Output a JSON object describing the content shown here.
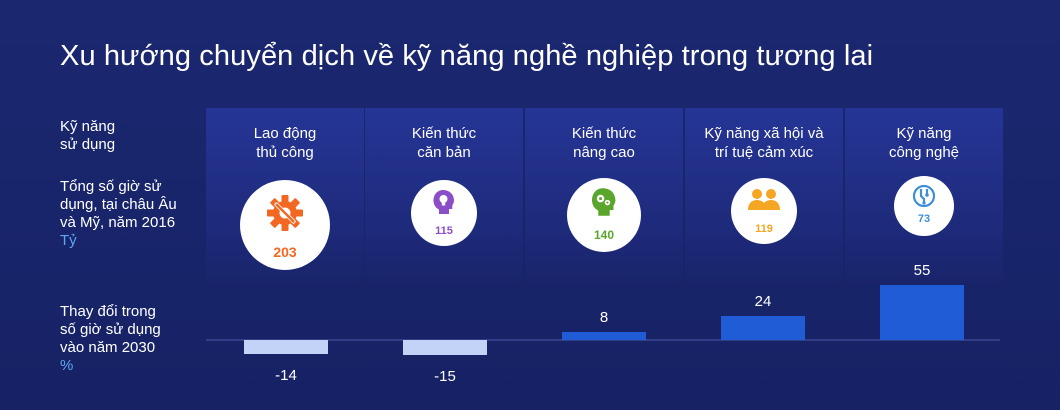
{
  "title": "Xu hướng chuyển dịch về kỹ năng nghề nghiệp trong tương lai",
  "row_labels": {
    "skills": [
      "Kỹ năng",
      "sử dụng"
    ],
    "hours": [
      "Tổng số giờ sử",
      "dụng, tại châu Âu",
      "và Mỹ, năm 2016"
    ],
    "hours_unit": "Tỷ",
    "change": [
      "Thay đổi trong",
      "số giờ sử dụng",
      "vào năm 2030"
    ],
    "change_unit": "%"
  },
  "colors": {
    "background": "#1b2870",
    "positive_bar": "#1f5cd6",
    "negative_bar": "#c3d2f7",
    "unit_text": "#5ba8f0"
  },
  "skills": [
    {
      "label_lines": [
        "Lao động",
        "thủ công"
      ],
      "hours": "203",
      "icon": "gear-wrench-icon",
      "color": "#f26722"
    },
    {
      "label_lines": [
        "Kiến thức",
        "căn bản"
      ],
      "hours": "115",
      "icon": "head-lightbulb-icon",
      "color": "#8a4fc7"
    },
    {
      "label_lines": [
        "Kiến thức",
        "nâng cao"
      ],
      "hours": "140",
      "icon": "head-gears-icon",
      "color": "#5aa62c"
    },
    {
      "label_lines": [
        "Kỹ năng xã hội và",
        "trí tuệ cảm xúc"
      ],
      "hours": "119",
      "icon": "people-icon",
      "color": "#f5a623"
    },
    {
      "label_lines": [
        "Kỹ năng",
        "công nghệ"
      ],
      "hours": "73",
      "icon": "tech-circuit-icon",
      "color": "#3e8fd8"
    }
  ],
  "chart_data": {
    "type": "bar",
    "categories": [
      "Lao động thủ công",
      "Kiến thức căn bản",
      "Kiến thức nâng cao",
      "Kỹ năng xã hội và trí tuệ cảm xúc",
      "Kỹ năng công nghệ"
    ],
    "values": [
      -14,
      -15,
      8,
      24,
      55
    ],
    "data_labels": [
      "-14",
      "-15",
      "8",
      "24",
      "55"
    ],
    "title": "",
    "xlabel": "",
    "ylabel": "",
    "grid": false
  }
}
